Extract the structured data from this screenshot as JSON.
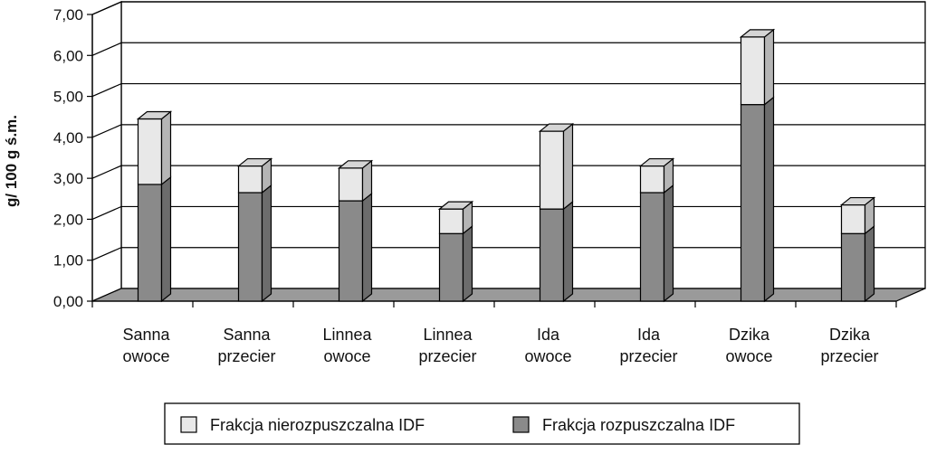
{
  "chart_data": {
    "type": "bar",
    "stacked": true,
    "three_d": true,
    "ylabel": "g/ 100 g ś.m.",
    "ylim": [
      0,
      7
    ],
    "y_tick_step": 1,
    "y_tick_labels": [
      "0,00",
      "1,00",
      "2,00",
      "3,00",
      "4,00",
      "5,00",
      "6,00",
      "7,00"
    ],
    "grid": true,
    "legend_position": "bottom",
    "categories": [
      [
        "Sanna",
        "owoce"
      ],
      [
        "Sanna",
        "przecier"
      ],
      [
        "Linnea",
        "owoce"
      ],
      [
        "Linnea",
        "przecier"
      ],
      [
        "Ida",
        "owoce"
      ],
      [
        "Ida",
        "przecier"
      ],
      [
        "Dzika",
        "owoce"
      ],
      [
        "Dzika",
        "przecier"
      ]
    ],
    "series": [
      {
        "name": "Frakcja rozpuszczalna IDF",
        "color": "#8a8a8a",
        "values": [
          2.85,
          2.65,
          2.45,
          1.65,
          2.25,
          2.65,
          4.8,
          1.65
        ]
      },
      {
        "name": "Frakcja nierozpuszczalna IDF",
        "color": "#e8e8e8",
        "values": [
          1.6,
          0.65,
          0.8,
          0.6,
          1.9,
          0.65,
          1.65,
          0.7
        ]
      }
    ],
    "legend_order": [
      "Frakcja nierozpuszczalna IDF",
      "Frakcja rozpuszczalna IDF"
    ]
  }
}
